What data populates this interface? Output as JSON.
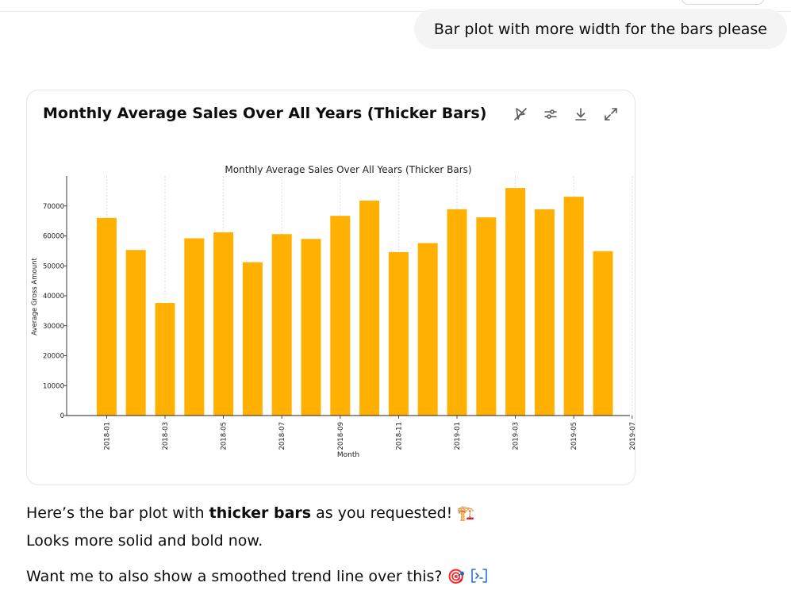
{
  "user_message": "Bar plot with more width for the bars please",
  "card": {
    "title": "Monthly Average Sales Over All Years (Thicker Bars)",
    "toolbar": [
      "switch-to-static-icon",
      "chart-settings-icon",
      "download-icon",
      "expand-icon"
    ]
  },
  "reply": {
    "line1_prefix": "Here’s the bar plot with ",
    "line1_bold": "thicker bars",
    "line1_suffix": " as you requested! ",
    "line1_emoji": "🏗️",
    "line2": "Looks more solid and bold now.",
    "line3": "Want me to also show a smoothed trend line over this? ",
    "line3_emoji": "🎯"
  },
  "chart_data": {
    "type": "bar",
    "title": "Monthly Average Sales Over All Years (Thicker Bars)",
    "xlabel": "Month",
    "ylabel": "Average Gross Amount",
    "ylim": [
      0,
      80000
    ],
    "yticks": [
      0,
      10000,
      20000,
      30000,
      40000,
      50000,
      60000,
      70000
    ],
    "xtick_labels": [
      "2018-01",
      "2018-03",
      "2018-05",
      "2018-07",
      "2018-09",
      "2018-11",
      "2019-01",
      "2019-03",
      "2019-05",
      "2019-07"
    ],
    "grid": "vertical dashed",
    "bar_color": "#FFB000",
    "bars": [
      {
        "month": "2018-01",
        "value": 66000
      },
      {
        "month": "2018-02",
        "value": 55300
      },
      {
        "month": "2018-03",
        "value": 37600
      },
      {
        "month": "2018-04",
        "value": 59200
      },
      {
        "month": "2018-05",
        "value": 61200
      },
      {
        "month": "2018-06",
        "value": 51200
      },
      {
        "month": "2018-07",
        "value": 60600
      },
      {
        "month": "2018-08",
        "value": 59000
      },
      {
        "month": "2018-09",
        "value": 66700
      },
      {
        "month": "2018-10",
        "value": 71800
      },
      {
        "month": "2018-11",
        "value": 54600
      },
      {
        "month": "2018-12",
        "value": 57600
      },
      {
        "month": "2019-01",
        "value": 68900
      },
      {
        "month": "2019-02",
        "value": 66200
      },
      {
        "month": "2019-03",
        "value": 76000
      },
      {
        "month": "2019-04",
        "value": 68900
      },
      {
        "month": "2019-05",
        "value": 73100
      },
      {
        "month": "2019-06",
        "value": 54900
      }
    ]
  }
}
